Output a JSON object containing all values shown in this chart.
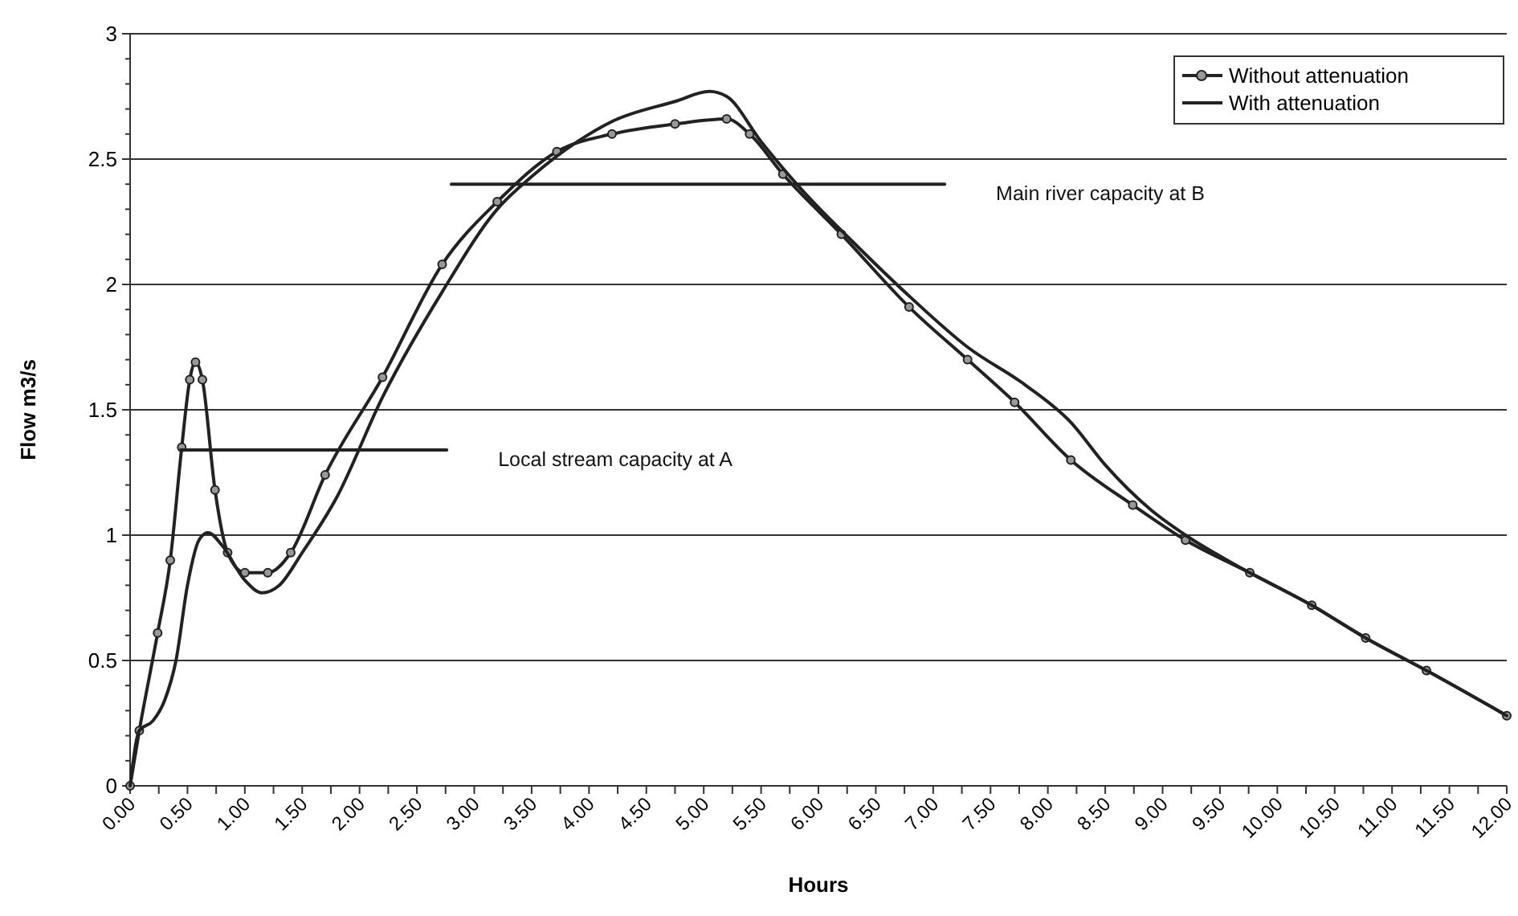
{
  "chart_data": {
    "type": "line",
    "xlabel": "Hours",
    "ylabel": "Flow m3/s",
    "xlim": [
      0,
      12
    ],
    "ylim": [
      0,
      3
    ],
    "xticks": [
      {
        "value": 0,
        "label": "0.00"
      },
      {
        "value": 0.25,
        "label": null
      },
      {
        "value": 0.5,
        "label": "0.50"
      },
      {
        "value": 0.75,
        "label": null
      },
      {
        "value": 1,
        "label": "1.00"
      },
      {
        "value": 1.25,
        "label": null
      },
      {
        "value": 1.5,
        "label": "1.50"
      },
      {
        "value": 1.75,
        "label": null
      },
      {
        "value": 2,
        "label": "2.00"
      },
      {
        "value": 2.25,
        "label": null
      },
      {
        "value": 2.5,
        "label": "2.50"
      },
      {
        "value": 2.75,
        "label": null
      },
      {
        "value": 3,
        "label": "3.00"
      },
      {
        "value": 3.25,
        "label": null
      },
      {
        "value": 3.5,
        "label": "3.50"
      },
      {
        "value": 3.75,
        "label": null
      },
      {
        "value": 4,
        "label": "4.00"
      },
      {
        "value": 4.25,
        "label": null
      },
      {
        "value": 4.5,
        "label": "4.50"
      },
      {
        "value": 4.75,
        "label": null
      },
      {
        "value": 5,
        "label": "5.00"
      },
      {
        "value": 5.25,
        "label": null
      },
      {
        "value": 5.5,
        "label": "5.50"
      },
      {
        "value": 5.75,
        "label": null
      },
      {
        "value": 6,
        "label": "6.00"
      },
      {
        "value": 6.25,
        "label": null
      },
      {
        "value": 6.5,
        "label": "6.50"
      },
      {
        "value": 6.75,
        "label": null
      },
      {
        "value": 7,
        "label": "7.00"
      },
      {
        "value": 7.25,
        "label": null
      },
      {
        "value": 7.5,
        "label": "7.50"
      },
      {
        "value": 7.75,
        "label": null
      },
      {
        "value": 8,
        "label": "8.00"
      },
      {
        "value": 8.25,
        "label": null
      },
      {
        "value": 8.5,
        "label": "8.50"
      },
      {
        "value": 8.75,
        "label": null
      },
      {
        "value": 9,
        "label": "9.00"
      },
      {
        "value": 9.25,
        "label": null
      },
      {
        "value": 9.5,
        "label": "9.50"
      },
      {
        "value": 9.75,
        "label": null
      },
      {
        "value": 10,
        "label": "10.00"
      },
      {
        "value": 10.25,
        "label": null
      },
      {
        "value": 10.5,
        "label": "10.50"
      },
      {
        "value": 10.75,
        "label": null
      },
      {
        "value": 11,
        "label": "11.00"
      },
      {
        "value": 11.25,
        "label": null
      },
      {
        "value": 11.5,
        "label": "11.50"
      },
      {
        "value": 11.75,
        "label": null
      },
      {
        "value": 12,
        "label": "12.00"
      }
    ],
    "yticks": [
      0,
      {
        "value": 0.1,
        "label": null
      },
      {
        "value": 0.2,
        "label": null
      },
      {
        "value": 0.3,
        "label": null
      },
      {
        "value": 0.4,
        "label": null
      },
      0.5,
      {
        "value": 0.6,
        "label": null
      },
      {
        "value": 0.7,
        "label": null
      },
      {
        "value": 0.8,
        "label": null
      },
      {
        "value": 0.9,
        "label": null
      },
      1,
      {
        "value": 1.1,
        "label": null
      },
      {
        "value": 1.2,
        "label": null
      },
      {
        "value": 1.3,
        "label": null
      },
      {
        "value": 1.4,
        "label": null
      },
      1.5,
      {
        "value": 1.6,
        "label": null
      },
      {
        "value": 1.7,
        "label": null
      },
      {
        "value": 1.8,
        "label": null
      },
      {
        "value": 1.9,
        "label": null
      },
      2,
      {
        "value": 2.1,
        "label": null
      },
      {
        "value": 2.2,
        "label": null
      },
      {
        "value": 2.3,
        "label": null
      },
      {
        "value": 2.4,
        "label": null
      },
      2.5,
      {
        "value": 2.6,
        "label": null
      },
      {
        "value": 2.7,
        "label": null
      },
      {
        "value": 2.8,
        "label": null
      },
      {
        "value": 2.9,
        "label": null
      },
      3
    ],
    "grid": "y",
    "legend": "top right",
    "line_style": "solid",
    "series": [
      {
        "name": "Without attenuation",
        "color": "#222222",
        "marker": "circle",
        "x": [
          0,
          0.08,
          0.24,
          0.35,
          0.45,
          0.52,
          0.57,
          0.63,
          0.74,
          0.85,
          1.0,
          1.2,
          1.4,
          1.7,
          2.2,
          2.72,
          3.2,
          3.72,
          4.2,
          4.75,
          5.2,
          5.4,
          5.69,
          6.2,
          6.79,
          7.3,
          7.71,
          8.2,
          8.74,
          9.2,
          9.76,
          10.3,
          10.77,
          11.3,
          12
        ],
        "values": [
          0,
          0.22,
          0.61,
          0.9,
          1.35,
          1.62,
          1.69,
          1.62,
          1.18,
          0.93,
          0.85,
          0.85,
          0.93,
          1.24,
          1.63,
          2.08,
          2.33,
          2.53,
          2.6,
          2.64,
          2.66,
          2.6,
          2.44,
          2.2,
          1.91,
          1.7,
          1.53,
          1.3,
          1.12,
          0.98,
          0.85,
          0.72,
          0.59,
          0.46,
          0.28
        ]
      },
      {
        "name": "With attenuation",
        "color": "#222222",
        "marker": "none",
        "x": [
          0,
          0.08,
          0.2,
          0.3,
          0.4,
          0.5,
          0.6,
          0.68,
          0.8,
          1.0,
          1.15,
          1.3,
          1.5,
          1.8,
          2.2,
          2.72,
          3.2,
          3.5,
          3.9,
          4.2,
          4.75,
          5.05,
          5.2,
          5.5,
          5.85,
          6.3,
          6.8,
          7.3,
          7.8,
          8.2,
          8.5,
          8.9,
          9.2,
          9.76,
          10.3,
          10.77,
          11.3,
          12
        ],
        "values": [
          0,
          0.22,
          0.26,
          0.34,
          0.5,
          0.8,
          0.98,
          1.01,
          0.96,
          0.82,
          0.77,
          0.8,
          0.93,
          1.15,
          1.55,
          1.97,
          2.3,
          2.43,
          2.57,
          2.65,
          2.73,
          2.77,
          2.75,
          2.57,
          2.38,
          2.17,
          1.95,
          1.75,
          1.6,
          1.45,
          1.28,
          1.1,
          1.0,
          0.85,
          0.72,
          0.59,
          0.46,
          0.28
        ]
      },
      {
        "name": "Local stream capacity at A",
        "color": "#222222",
        "x": [
          0.44,
          2.76
        ],
        "values": [
          1.34,
          1.34
        ]
      },
      {
        "name": "Main river capacity at B",
        "color": "#222222",
        "x": [
          2.8,
          7.1
        ],
        "values": [
          2.4,
          2.4
        ]
      }
    ]
  }
}
